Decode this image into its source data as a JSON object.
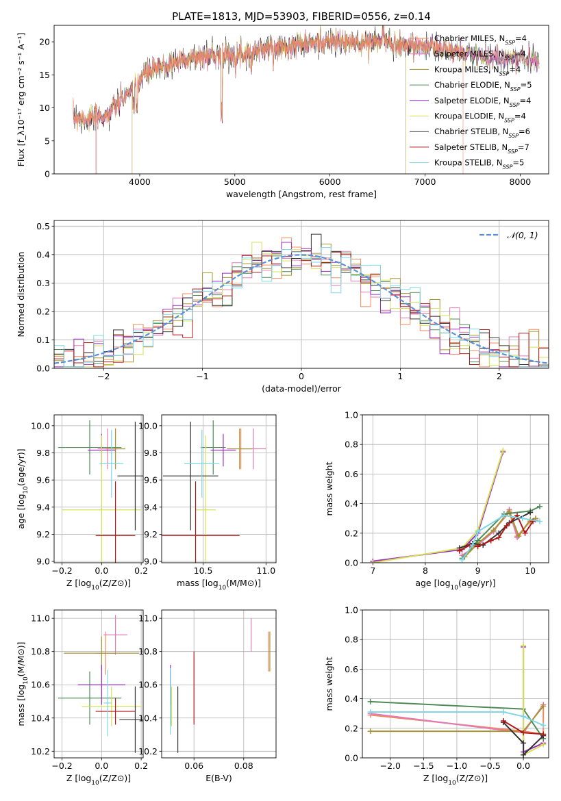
{
  "figure_title": "PLATE=1813, MJD=53903, FIBERID=0556, z=0.14",
  "colors": {
    "Chabrier MILES": "#f08a5d",
    "Salpeter MILES": "#e07bb5",
    "Kroupa MILES": "#a89530",
    "Chabrier ELODIE": "#4f8a56",
    "Salpeter ELODIE": "#9b30c0",
    "Kroupa ELODIE": "#d6e057",
    "Chabrier STELIB": "#333333",
    "Salpeter STELIB": "#b01818",
    "Kroupa STELIB": "#7fd6e6",
    "gaussian": "#5b8fd8",
    "grid": "#b0b0b0"
  },
  "chart_data": [
    {
      "id": "spectrum",
      "type": "line",
      "xlabel": "wavelength [Angstrom, rest frame]",
      "ylabel": "Flux [f_λ10⁻¹⁷ erg cm⁻² s⁻¹ A⁻¹]",
      "xlim": [
        3100,
        8300
      ],
      "ylim": [
        0,
        22.5
      ],
      "xticks": [
        4000,
        5000,
        6000,
        7000,
        8000
      ],
      "yticks": [
        0,
        5,
        10,
        15,
        20
      ],
      "grid": false,
      "legend_position": "right",
      "legend": [
        "Chabrier MILES, N_SSP=4",
        "Salpeter MILES, N_SSP=4",
        "Kroupa MILES, N_SSP=4",
        "Chabrier ELODIE, N_SSP=5",
        "Salpeter ELODIE, N_SSP=4",
        "Kroupa ELODIE, N_SSP=4",
        "Chabrier STELIB, N_SSP=6",
        "Salpeter STELIB, N_SSP=7",
        "Kroupa STELIB, N_SSP=5"
      ],
      "spectrum_envelope": {
        "x": [
          3300,
          3500,
          3650,
          3800,
          3950,
          4050,
          4300,
          4500,
          4862,
          5000,
          5200,
          5500,
          5800,
          6000,
          6300,
          6563,
          6700,
          7000,
          7300,
          7600,
          8000,
          8200
        ],
        "y": [
          8.6,
          8.4,
          8.8,
          11.0,
          13.5,
          15.2,
          16.5,
          17.5,
          18.1,
          18.0,
          18.6,
          19.3,
          19.8,
          20.0,
          19.8,
          20.1,
          19.6,
          19.4,
          18.6,
          17.8,
          17.5,
          17.2
        ]
      },
      "truncations": [
        {
          "series": "Salpeter STELIB",
          "x": 3540,
          "side": "left"
        },
        {
          "series": "Kroupa MILES",
          "x": 3920,
          "side": "left"
        },
        {
          "series": "Kroupa MILES",
          "x": 6800,
          "side": "right"
        },
        {
          "series": "Chabrier MILES",
          "x": 7400,
          "side": "right"
        }
      ]
    },
    {
      "id": "residuals",
      "type": "histogram",
      "xlabel": "(data-model)/error",
      "ylabel": "Normed distribution",
      "xlim": [
        -2.5,
        2.5
      ],
      "ylim": [
        0,
        0.52
      ],
      "xticks": [
        -2,
        -1,
        0,
        1,
        2
      ],
      "yticks": [
        0.0,
        0.1,
        0.2,
        0.3,
        0.4,
        0.5
      ],
      "grid": true,
      "legend": [
        "𝒩(0, 1)"
      ],
      "legend_position": "top-right",
      "bin_width": 0.1,
      "gaussian": {
        "mean": 0,
        "sigma": 1
      }
    },
    {
      "id": "z_age",
      "type": "scatter",
      "xlabel": "Z [log₁₀(Z/Z⊙)]",
      "ylabel": "age  [log₁₀(age/yr)]",
      "xlim": [
        -0.24,
        0.21
      ],
      "ylim": [
        8.99,
        10.08
      ],
      "xticks": [
        -0.2,
        0.0,
        0.2
      ],
      "yticks": [
        9.0,
        9.2,
        9.4,
        9.6,
        9.8,
        10.0
      ],
      "grid": true,
      "points": [
        {
          "series": "Chabrier MILES",
          "x": 0.07,
          "xerr": 0.05,
          "y": 9.83,
          "yerr": 0.15
        },
        {
          "series": "Salpeter MILES",
          "x": 0.03,
          "xerr": 0.05,
          "y": 9.83,
          "yerr": 0.15
        },
        {
          "series": "Kroupa MILES",
          "x": 0.07,
          "xerr": 0.05,
          "y": 9.83,
          "yerr": 0.15
        },
        {
          "series": "Chabrier ELODIE",
          "x": -0.06,
          "xerr": 0.16,
          "y": 9.84,
          "yerr": 0.2
        },
        {
          "series": "Salpeter ELODIE",
          "x": 0.0,
          "xerr": 0.07,
          "y": 9.82,
          "yerr": 0.12
        },
        {
          "series": "Kroupa ELODIE",
          "x": 0.0,
          "xerr": 0.2,
          "y": 9.38,
          "yerr": 0.55
        },
        {
          "series": "Chabrier STELIB",
          "x": 0.17,
          "xerr": 0.09,
          "y": 9.63,
          "yerr": 0.4
        },
        {
          "series": "Salpeter STELIB",
          "x": 0.07,
          "xerr": 0.1,
          "y": 9.19,
          "yerr": 0.4
        },
        {
          "series": "Kroupa STELIB",
          "x": 0.05,
          "xerr": 0.06,
          "y": 9.72,
          "yerr": 0.25
        }
      ]
    },
    {
      "id": "mass_age",
      "type": "scatter",
      "xlabel": "mass [log₁₀(M/M⊙)]",
      "ylabel": "",
      "xlim": [
        10.17,
        11.08
      ],
      "ylim": [
        8.99,
        10.08
      ],
      "xticks": [
        10.5,
        11.0
      ],
      "yticks": [
        9.0,
        9.2,
        9.4,
        9.6,
        9.8,
        10.0
      ],
      "grid": true,
      "points": [
        {
          "series": "Chabrier MILES",
          "x": 10.8,
          "xerr": 0.11,
          "y": 9.83,
          "yerr": 0.15
        },
        {
          "series": "Salpeter MILES",
          "x": 10.9,
          "xerr": 0.1,
          "y": 9.83,
          "yerr": 0.15
        },
        {
          "series": "Kroupa MILES",
          "x": 10.79,
          "xerr": 0.1,
          "y": 9.83,
          "yerr": 0.15
        },
        {
          "series": "Chabrier ELODIE",
          "x": 10.58,
          "xerr": 0.1,
          "y": 9.84,
          "yerr": 0.2
        },
        {
          "series": "Salpeter ELODIE",
          "x": 10.66,
          "xerr": 0.1,
          "y": 9.82,
          "yerr": 0.12
        },
        {
          "series": "Kroupa ELODIE",
          "x": 10.52,
          "xerr": 0.08,
          "y": 9.38,
          "yerr": 0.55
        },
        {
          "series": "Chabrier STELIB",
          "x": 10.4,
          "xerr": 0.22,
          "y": 9.63,
          "yerr": 0.4
        },
        {
          "series": "Salpeter STELIB",
          "x": 10.44,
          "xerr": 0.35,
          "y": 9.19,
          "yerr": 0.4
        },
        {
          "series": "Kroupa STELIB",
          "x": 10.49,
          "xerr": 0.14,
          "y": 9.72,
          "yerr": 0.25
        }
      ]
    },
    {
      "id": "age_weight",
      "type": "line",
      "xlabel": "age  [log₁₀(age/yr)]",
      "ylabel": "mass weight",
      "xlim": [
        6.8,
        10.35
      ],
      "ylim": [
        0,
        1.0
      ],
      "xticks": [
        7,
        8,
        9,
        10
      ],
      "yticks": [
        0.0,
        0.2,
        0.4,
        0.6,
        0.8,
        1.0
      ],
      "grid": true,
      "series": [
        {
          "name": "Chabrier MILES",
          "x": [
            8.7,
            9.0,
            9.3,
            9.6,
            9.75,
            10.0,
            10.1
          ],
          "y": [
            0.05,
            0.12,
            0.22,
            0.34,
            0.18,
            0.28,
            0.3
          ]
        },
        {
          "name": "Salpeter MILES",
          "x": [
            8.7,
            9.0,
            9.3,
            9.6,
            9.75,
            10.0,
            10.1
          ],
          "y": [
            0.05,
            0.12,
            0.21,
            0.36,
            0.17,
            0.29,
            0.29
          ]
        },
        {
          "name": "Kroupa MILES",
          "x": [
            8.75,
            9.0,
            9.3,
            9.6,
            9.78,
            10.0,
            10.1
          ],
          "y": [
            0.04,
            0.13,
            0.22,
            0.35,
            0.18,
            0.29,
            0.3
          ]
        },
        {
          "name": "Chabrier ELODIE",
          "x": [
            8.7,
            9.0,
            9.5,
            10.0,
            10.18
          ],
          "y": [
            0.03,
            0.15,
            0.33,
            0.35,
            0.38
          ]
        },
        {
          "name": "Salpeter ELODIE",
          "x": [
            7.0,
            8.7,
            9.0,
            9.48
          ],
          "y": [
            0.01,
            0.09,
            0.2,
            0.75
          ]
        },
        {
          "name": "Kroupa ELODIE",
          "x": [
            7.0,
            8.7,
            9.0,
            9.48
          ],
          "y": [
            0.0,
            0.1,
            0.22,
            0.76
          ]
        },
        {
          "name": "Chabrier STELIB",
          "x": [
            8.65,
            8.9,
            9.1,
            9.4,
            9.6,
            10.0
          ],
          "y": [
            0.1,
            0.13,
            0.12,
            0.2,
            0.27,
            0.34
          ]
        },
        {
          "name": "Salpeter STELIB",
          "x": [
            8.65,
            8.85,
            9.0,
            9.25,
            9.4,
            9.55,
            9.75,
            9.9,
            10.05
          ],
          "y": [
            0.08,
            0.12,
            0.11,
            0.15,
            0.17,
            0.25,
            0.32,
            0.2,
            0.28
          ]
        },
        {
          "name": "Kroupa STELIB",
          "x": [
            8.7,
            8.9,
            9.0,
            9.5,
            9.85,
            10.18
          ],
          "y": [
            0.02,
            0.12,
            0.21,
            0.32,
            0.3,
            0.28
          ]
        }
      ]
    },
    {
      "id": "z_mass",
      "type": "scatter",
      "xlabel": "Z [log₁₀(Z/Z⊙)]",
      "ylabel": "mass [log₁₀(M/M⊙)]",
      "xlim": [
        -0.24,
        0.21
      ],
      "ylim": [
        10.16,
        11.05
      ],
      "xticks": [
        -0.2,
        0.0,
        0.2
      ],
      "yticks": [
        10.2,
        10.4,
        10.6,
        10.8,
        11.0
      ],
      "grid": true,
      "points": [
        {
          "series": "Chabrier MILES",
          "x": 0.02,
          "xerr": 0.05,
          "y": 10.79,
          "yerr": 0.13
        },
        {
          "series": "Salpeter MILES",
          "x": 0.07,
          "xerr": 0.06,
          "y": 10.9,
          "yerr": 0.12
        },
        {
          "series": "Kroupa MILES",
          "x": 0.0,
          "xerr": 0.19,
          "y": 10.79,
          "yerr": 0.1
        },
        {
          "series": "Chabrier ELODIE",
          "x": -0.06,
          "xerr": 0.16,
          "y": 10.52,
          "yerr": 0.16
        },
        {
          "series": "Salpeter ELODIE",
          "x": 0.0,
          "xerr": 0.12,
          "y": 10.6,
          "yerr": 0.12
        },
        {
          "series": "Kroupa ELODIE",
          "x": 0.05,
          "xerr": 0.15,
          "y": 10.47,
          "yerr": 0.12
        },
        {
          "series": "Chabrier STELIB",
          "x": 0.17,
          "xerr": 0.08,
          "y": 10.39,
          "yerr": 0.2
        },
        {
          "series": "Salpeter STELIB",
          "x": 0.07,
          "xerr": 0.1,
          "y": 10.44,
          "yerr": 0.08
        },
        {
          "series": "Kroupa STELIB",
          "x": 0.03,
          "xerr": 0.02,
          "y": 10.49,
          "yerr": 0.2
        }
      ]
    },
    {
      "id": "ebv_mass",
      "type": "scatter",
      "xlabel": "E(B-V)",
      "ylabel": "",
      "xlim": [
        0.047,
        0.093
      ],
      "ylim": [
        10.16,
        11.05
      ],
      "xticks": [
        0.06,
        0.08
      ],
      "yticks": [
        10.2,
        10.4,
        10.6,
        10.8,
        11.0
      ],
      "grid": true,
      "points": [
        {
          "series": "Chabrier MILES",
          "x": 0.09,
          "y": 10.8,
          "yerr": 0.12
        },
        {
          "series": "Salpeter MILES",
          "x": 0.083,
          "y": 10.9,
          "yerr": 0.1
        },
        {
          "series": "Kroupa MILES",
          "x": 0.0905,
          "y": 10.8,
          "yerr": 0.12
        },
        {
          "series": "Chabrier ELODIE",
          "x": 0.0505,
          "y": 10.52,
          "yerr": 0.16
        },
        {
          "series": "Salpeter ELODIE",
          "x": 0.0505,
          "y": 10.6,
          "yerr": 0.12
        },
        {
          "series": "Kroupa ELODIE",
          "x": 0.051,
          "y": 10.47,
          "yerr": 0.12
        },
        {
          "series": "Chabrier STELIB",
          "x": 0.0535,
          "y": 10.39,
          "yerr": 0.2
        },
        {
          "series": "Salpeter STELIB",
          "x": 0.06,
          "y": 10.58,
          "yerr": 0.22
        },
        {
          "series": "Kroupa STELIB",
          "x": 0.0505,
          "y": 10.5,
          "yerr": 0.2
        }
      ]
    },
    {
      "id": "z_weight",
      "type": "line",
      "xlabel": "Z [log₁₀(Z/Z⊙)]",
      "ylabel": "mass weight",
      "xlim": [
        -2.42,
        0.38
      ],
      "ylim": [
        0,
        1.0
      ],
      "xticks": [
        -2.0,
        -1.5,
        -1.0,
        -0.5,
        0.0
      ],
      "yticks": [
        0.0,
        0.2,
        0.4,
        0.6,
        0.8,
        1.0
      ],
      "grid": true,
      "series": [
        {
          "name": "Chabrier MILES",
          "x": [
            -2.3,
            0.0,
            0.3,
            0.3
          ],
          "y": [
            0.29,
            0.18,
            0.16,
            0.36
          ]
        },
        {
          "name": "Salpeter MILES",
          "x": [
            -2.3,
            0.0,
            0.3
          ],
          "y": [
            0.3,
            0.17,
            0.36
          ]
        },
        {
          "name": "Kroupa MILES",
          "x": [
            -2.3,
            0.0,
            0.3
          ],
          "y": [
            0.18,
            0.18,
            0.35
          ]
        },
        {
          "name": "Chabrier ELODIE",
          "x": [
            -2.3,
            0.0,
            0.3
          ],
          "y": [
            0.38,
            0.33,
            0.13
          ]
        },
        {
          "name": "Salpeter ELODIE",
          "x": [
            0.0,
            0.0,
            0.3
          ],
          "y": [
            0.75,
            0.04,
            0.1
          ]
        },
        {
          "name": "Kroupa ELODIE",
          "x": [
            0.0,
            0.0,
            0.3
          ],
          "y": [
            0.76,
            0.02,
            0.09
          ]
        },
        {
          "name": "Chabrier STELIB",
          "x": [
            -0.3,
            0.0,
            0.0,
            0.3
          ],
          "y": [
            0.24,
            0.1,
            0.02,
            0.15
          ]
        },
        {
          "name": "Salpeter STELIB",
          "x": [
            -0.3,
            0.0,
            0.3
          ],
          "y": [
            0.25,
            0.17,
            0.16
          ]
        },
        {
          "name": "Kroupa STELIB",
          "x": [
            -2.3,
            -0.3,
            0.0,
            0.3
          ],
          "y": [
            0.31,
            0.31,
            0.28,
            0.22
          ]
        }
      ]
    }
  ]
}
